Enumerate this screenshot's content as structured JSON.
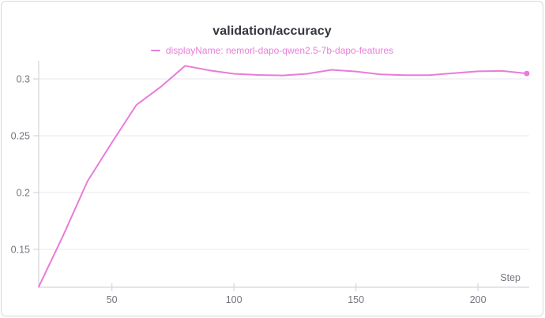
{
  "chart": {
    "title": "validation/accuracy",
    "legend_label": "displayName: nemorl-dapo-qwen2.5-7b-dapo-features"
  },
  "chart_data": {
    "type": "line",
    "title": "validation/accuracy",
    "xlabel": "Step",
    "ylabel": "",
    "xlim": [
      20,
      221
    ],
    "ylim": [
      0.117,
      0.316
    ],
    "grid": "horizontal",
    "legend_position": "top-center",
    "x_ticks": [
      50,
      100,
      150,
      200
    ],
    "x_tick_labels": [
      "50",
      "100",
      "150",
      "200"
    ],
    "y_ticks": [
      0.3,
      0.25,
      0.2,
      0.15
    ],
    "y_tick_labels": [
      "0.3",
      "0.25",
      "0.2",
      "0.15"
    ],
    "series": [
      {
        "name": "displayName: nemorl-dapo-qwen2.5-7b-dapo-features",
        "color": "#e87cd8",
        "end_marker": true,
        "x": [
          20,
          30,
          40,
          50,
          60,
          70,
          80,
          90,
          100,
          110,
          120,
          130,
          140,
          150,
          160,
          170,
          180,
          190,
          200,
          210,
          220
        ],
        "y": [
          0.117,
          0.162,
          0.21,
          0.244,
          0.277,
          0.293,
          0.3115,
          0.3075,
          0.3045,
          0.3035,
          0.303,
          0.3045,
          0.308,
          0.3065,
          0.304,
          0.3033,
          0.3033,
          0.305,
          0.3067,
          0.307,
          0.3048
        ]
      }
    ],
    "colors": {
      "accent_line": "#e87cd8",
      "title_text": "#363640",
      "tick_text": "#74747f",
      "axis": "#d6d6db",
      "gridline": "#ededf1",
      "panel_border": "#d8d8d8",
      "background": "#ffffff"
    }
  }
}
